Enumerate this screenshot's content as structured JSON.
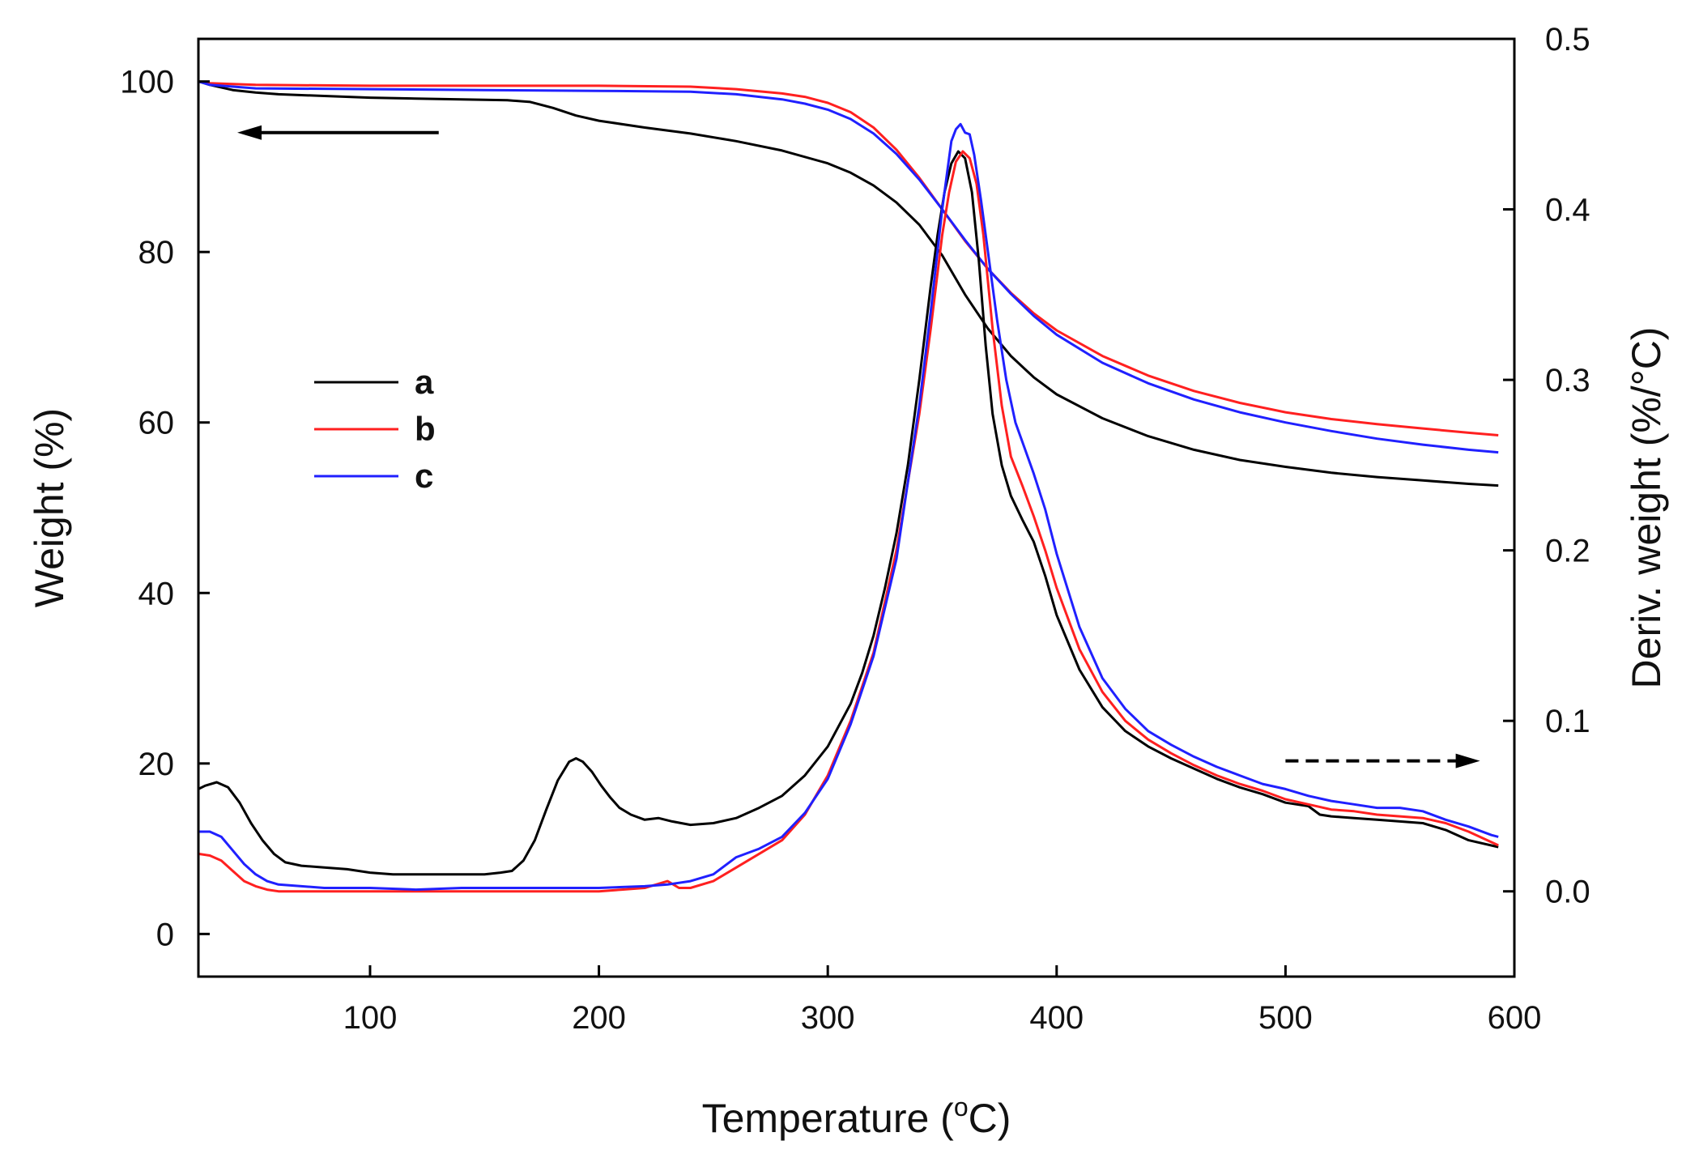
{
  "chart_data": {
    "type": "line",
    "xlabel_main": "Temperature (",
    "xlabel_unit_sup": "o",
    "xlabel_unit_tail": "C)",
    "ylabel": "Weight (%)",
    "y2label": "Deriv. weight (%/°C)",
    "xlim": [
      25,
      600
    ],
    "ylim": [
      -5,
      105
    ],
    "y2lim": [
      -0.05,
      0.5
    ],
    "x_ticks": [
      100,
      200,
      300,
      400,
      500,
      600
    ],
    "x_tick_labels": [
      "100",
      "200",
      "300",
      "400",
      "500",
      "600"
    ],
    "y_ticks": [
      0,
      20,
      40,
      60,
      80,
      100
    ],
    "y_tick_labels": [
      "0",
      "20",
      "40",
      "60",
      "80",
      "100"
    ],
    "y2_ticks": [
      0.0,
      0.1,
      0.2,
      0.3,
      0.4,
      0.5
    ],
    "y2_tick_labels": [
      "0.0",
      "0.1",
      "0.2",
      "0.3",
      "0.4",
      "0.5"
    ],
    "legend": [
      {
        "name": "a",
        "color": "#000000"
      },
      {
        "name": "b",
        "color": "#ff2020"
      },
      {
        "name": "c",
        "color": "#2020ff"
      }
    ],
    "annotations": [
      {
        "type": "arrow",
        "style": "solid",
        "direction": "left",
        "meaning": "weight curves use left axis",
        "x_from": 130,
        "x_to": 42,
        "y": 94
      },
      {
        "type": "arrow",
        "style": "dashed",
        "direction": "right",
        "meaning": "derivative curves use right axis",
        "x_from": 500,
        "x_to": 585,
        "y": 20.3
      }
    ],
    "series": [
      {
        "name": "a",
        "kind": "weight",
        "axis": "left",
        "color": "#000000",
        "x": [
          25,
          30,
          40,
          50,
          60,
          80,
          100,
          120,
          140,
          160,
          170,
          180,
          190,
          200,
          220,
          240,
          260,
          280,
          300,
          310,
          320,
          330,
          340,
          350,
          360,
          370,
          380,
          390,
          400,
          420,
          440,
          460,
          480,
          500,
          520,
          540,
          560,
          580,
          593
        ],
        "y": [
          100,
          99.6,
          99.0,
          98.7,
          98.5,
          98.3,
          98.1,
          98.0,
          97.9,
          97.8,
          97.6,
          96.9,
          96.0,
          95.4,
          94.6,
          93.9,
          93.0,
          91.9,
          90.4,
          89.3,
          87.8,
          85.8,
          83.2,
          79.6,
          75.0,
          71.0,
          67.8,
          65.3,
          63.3,
          60.5,
          58.4,
          56.8,
          55.6,
          54.8,
          54.1,
          53.6,
          53.2,
          52.8,
          52.6
        ]
      },
      {
        "name": "b",
        "kind": "weight",
        "axis": "left",
        "color": "#ff2020",
        "x": [
          25,
          30,
          50,
          100,
          150,
          200,
          240,
          260,
          280,
          290,
          300,
          310,
          320,
          330,
          340,
          350,
          360,
          370,
          380,
          390,
          400,
          420,
          440,
          460,
          480,
          500,
          520,
          540,
          560,
          580,
          593
        ],
        "y": [
          100,
          99.8,
          99.6,
          99.5,
          99.5,
          99.5,
          99.4,
          99.1,
          98.6,
          98.2,
          97.5,
          96.4,
          94.6,
          92.0,
          88.7,
          85.0,
          81.3,
          78.0,
          75.2,
          72.8,
          70.8,
          67.8,
          65.5,
          63.7,
          62.3,
          61.2,
          60.4,
          59.8,
          59.3,
          58.8,
          58.5
        ]
      },
      {
        "name": "c",
        "kind": "weight",
        "axis": "left",
        "color": "#2020ff",
        "x": [
          25,
          30,
          50,
          100,
          150,
          200,
          240,
          260,
          280,
          290,
          300,
          310,
          320,
          330,
          340,
          350,
          360,
          370,
          380,
          390,
          400,
          420,
          440,
          460,
          480,
          500,
          520,
          540,
          560,
          580,
          593
        ],
        "y": [
          100,
          99.6,
          99.2,
          99.1,
          99.0,
          98.9,
          98.8,
          98.5,
          97.9,
          97.4,
          96.7,
          95.6,
          93.9,
          91.5,
          88.5,
          85.0,
          81.4,
          78.0,
          75.1,
          72.5,
          70.3,
          67.0,
          64.6,
          62.7,
          61.2,
          60.0,
          59.0,
          58.1,
          57.4,
          56.8,
          56.5
        ]
      },
      {
        "name": "a",
        "kind": "derivative",
        "axis": "right",
        "color": "#000000",
        "x": [
          25,
          28,
          33,
          38,
          43,
          48,
          53,
          58,
          63,
          70,
          80,
          90,
          100,
          110,
          120,
          130,
          140,
          150,
          157,
          162,
          167,
          172,
          177,
          182,
          187,
          190,
          193,
          197,
          201,
          205,
          209,
          214,
          220,
          226,
          232,
          240,
          250,
          260,
          270,
          280,
          290,
          300,
          310,
          315,
          320,
          325,
          330,
          335,
          340,
          345,
          348,
          351,
          354,
          357,
          360,
          363,
          366,
          369,
          372,
          376,
          380,
          385,
          390,
          395,
          400,
          410,
          420,
          430,
          440,
          450,
          460,
          470,
          480,
          490,
          500,
          510,
          515,
          520,
          530,
          540,
          550,
          560,
          570,
          580,
          593
        ],
        "y": [
          0.06,
          0.062,
          0.064,
          0.061,
          0.052,
          0.04,
          0.03,
          0.022,
          0.017,
          0.015,
          0.014,
          0.013,
          0.011,
          0.01,
          0.01,
          0.01,
          0.01,
          0.01,
          0.011,
          0.012,
          0.018,
          0.03,
          0.048,
          0.065,
          0.076,
          0.078,
          0.076,
          0.07,
          0.062,
          0.055,
          0.049,
          0.045,
          0.042,
          0.043,
          0.041,
          0.039,
          0.04,
          0.043,
          0.049,
          0.056,
          0.068,
          0.085,
          0.11,
          0.128,
          0.15,
          0.178,
          0.21,
          0.25,
          0.3,
          0.355,
          0.385,
          0.41,
          0.427,
          0.434,
          0.43,
          0.41,
          0.37,
          0.32,
          0.28,
          0.25,
          0.232,
          0.218,
          0.205,
          0.185,
          0.162,
          0.13,
          0.108,
          0.094,
          0.085,
          0.078,
          0.072,
          0.066,
          0.061,
          0.057,
          0.052,
          0.05,
          0.045,
          0.044,
          0.043,
          0.042,
          0.041,
          0.04,
          0.036,
          0.03,
          0.026
        ]
      },
      {
        "name": "b",
        "kind": "derivative",
        "axis": "right",
        "color": "#ff2020",
        "x": [
          25,
          30,
          35,
          40,
          45,
          50,
          55,
          60,
          70,
          80,
          100,
          120,
          140,
          160,
          180,
          200,
          210,
          220,
          225,
          230,
          235,
          240,
          250,
          260,
          270,
          280,
          290,
          300,
          310,
          320,
          330,
          340,
          345,
          350,
          353,
          356,
          359,
          362,
          365,
          368,
          372,
          376,
          380,
          385,
          390,
          395,
          400,
          410,
          420,
          430,
          440,
          450,
          460,
          470,
          480,
          490,
          500,
          510,
          520,
          530,
          540,
          550,
          560,
          570,
          580,
          593
        ],
        "y": [
          0.022,
          0.021,
          0.018,
          0.012,
          0.006,
          0.003,
          0.001,
          0.0,
          0.0,
          0.0,
          0.0,
          0.0,
          0.0,
          0.0,
          0.0,
          0.0,
          0.001,
          0.002,
          0.004,
          0.006,
          0.002,
          0.002,
          0.006,
          0.014,
          0.022,
          0.03,
          0.045,
          0.068,
          0.1,
          0.14,
          0.2,
          0.28,
          0.33,
          0.385,
          0.41,
          0.428,
          0.434,
          0.43,
          0.415,
          0.385,
          0.33,
          0.285,
          0.255,
          0.238,
          0.22,
          0.2,
          0.178,
          0.142,
          0.117,
          0.1,
          0.089,
          0.081,
          0.074,
          0.068,
          0.063,
          0.059,
          0.054,
          0.051,
          0.048,
          0.047,
          0.045,
          0.044,
          0.043,
          0.04,
          0.035,
          0.027
        ]
      },
      {
        "name": "c",
        "kind": "derivative",
        "axis": "right",
        "color": "#2020ff",
        "x": [
          25,
          30,
          35,
          40,
          45,
          50,
          55,
          60,
          70,
          80,
          100,
          120,
          140,
          160,
          180,
          200,
          220,
          230,
          240,
          250,
          260,
          270,
          280,
          290,
          300,
          310,
          320,
          330,
          340,
          345,
          350,
          352,
          354,
          356,
          358,
          360,
          362,
          364,
          367,
          370,
          374,
          378,
          382,
          386,
          390,
          395,
          400,
          410,
          420,
          430,
          440,
          450,
          460,
          470,
          480,
          490,
          500,
          510,
          520,
          530,
          540,
          550,
          560,
          570,
          580,
          590,
          593
        ],
        "y": [
          0.035,
          0.035,
          0.032,
          0.024,
          0.016,
          0.01,
          0.006,
          0.004,
          0.003,
          0.002,
          0.002,
          0.001,
          0.002,
          0.002,
          0.002,
          0.002,
          0.003,
          0.004,
          0.006,
          0.01,
          0.02,
          0.025,
          0.032,
          0.046,
          0.066,
          0.098,
          0.138,
          0.195,
          0.285,
          0.34,
          0.4,
          0.42,
          0.44,
          0.447,
          0.45,
          0.445,
          0.444,
          0.432,
          0.405,
          0.375,
          0.335,
          0.3,
          0.275,
          0.26,
          0.245,
          0.224,
          0.198,
          0.155,
          0.125,
          0.107,
          0.094,
          0.086,
          0.079,
          0.073,
          0.068,
          0.063,
          0.06,
          0.056,
          0.053,
          0.051,
          0.049,
          0.049,
          0.047,
          0.042,
          0.038,
          0.033,
          0.032
        ]
      }
    ]
  }
}
